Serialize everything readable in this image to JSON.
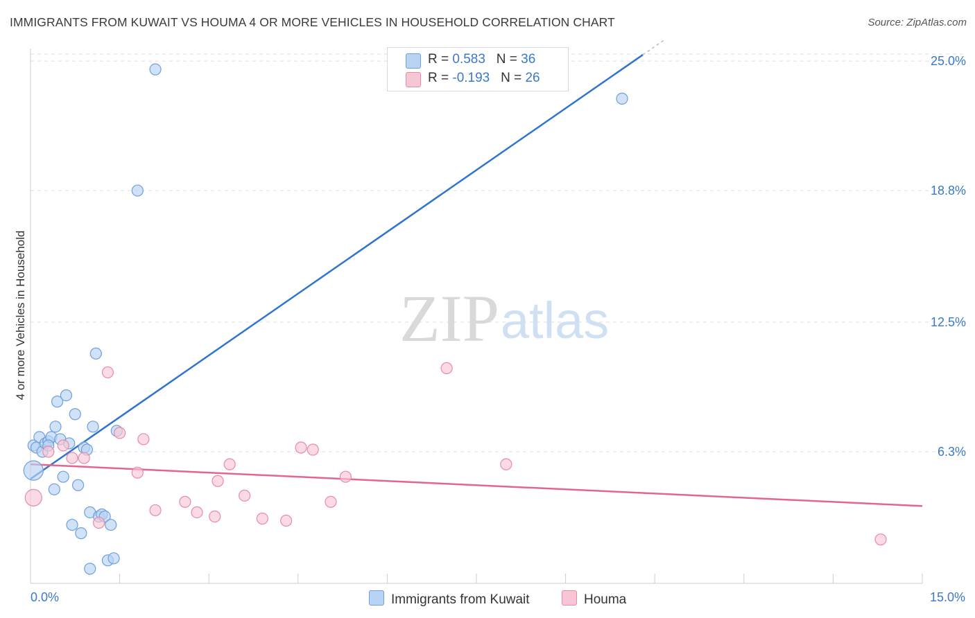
{
  "colors": {
    "blue_fill": "#b8d3f3",
    "blue_stroke": "#6d9fdc",
    "blue_line": "#2e74d0",
    "pink_fill": "#f7c6d5",
    "pink_stroke": "#e88aa8",
    "pink_line": "#e2658e",
    "axis_text": "#3a78c9",
    "grid": "#dddddd"
  },
  "header": {
    "title": "IMMIGRANTS FROM KUWAIT VS HOUMA 4 OR MORE VEHICLES IN HOUSEHOLD CORRELATION CHART",
    "source": "Source: ZipAtlas.com"
  },
  "watermark": {
    "zip": "ZIP",
    "atlas": "atlas"
  },
  "legend": {
    "rows": [
      {
        "r_label": "R = ",
        "r_value": "0.583",
        "n_label": "N = ",
        "n_value": "36"
      },
      {
        "r_label": "R = ",
        "r_value": "-0.193",
        "n_label": "N = ",
        "n_value": "26"
      }
    ]
  },
  "chart_data": {
    "type": "scatter",
    "title": "IMMIGRANTS FROM KUWAIT VS HOUMA 4 OR MORE VEHICLES IN HOUSEHOLD CORRELATION CHART",
    "xlabel": "",
    "ylabel": "4 or more Vehicles in Household",
    "xlim": [
      0,
      15
    ],
    "ylim": [
      0,
      25.6
    ],
    "x_tick_labels": [
      "0.0%",
      "15.0%"
    ],
    "y_ticks": [
      6.3,
      12.5,
      18.8,
      25.0
    ],
    "y_tick_labels": [
      "6.3%",
      "12.5%",
      "18.8%",
      "25.0%"
    ],
    "grid": true,
    "legend_position": "top-center",
    "series": [
      {
        "name": "Immigrants from Kuwait",
        "color": "#b8d3f3",
        "r": 0.583,
        "n": 36,
        "trend": {
          "x": [
            0,
            10.3
          ],
          "y": [
            5.0,
            25.3
          ]
        },
        "points": [
          [
            0.05,
            5.4
          ],
          [
            0.05,
            6.6
          ],
          [
            0.1,
            6.5
          ],
          [
            0.15,
            7.0
          ],
          [
            0.2,
            6.3
          ],
          [
            0.25,
            6.7
          ],
          [
            0.3,
            6.8
          ],
          [
            0.35,
            7.0
          ],
          [
            0.4,
            4.5
          ],
          [
            0.42,
            7.5
          ],
          [
            0.45,
            8.7
          ],
          [
            0.5,
            6.9
          ],
          [
            0.55,
            5.1
          ],
          [
            0.6,
            9.0
          ],
          [
            0.65,
            6.7
          ],
          [
            0.7,
            2.8
          ],
          [
            0.75,
            8.1
          ],
          [
            0.8,
            4.7
          ],
          [
            0.85,
            2.4
          ],
          [
            0.9,
            6.5
          ],
          [
            0.95,
            6.4
          ],
          [
            1.0,
            3.4
          ],
          [
            1.05,
            7.5
          ],
          [
            1.1,
            11.0
          ],
          [
            1.15,
            3.2
          ],
          [
            1.2,
            3.3
          ],
          [
            1.25,
            3.2
          ],
          [
            1.3,
            1.1
          ],
          [
            1.35,
            2.8
          ],
          [
            1.4,
            1.2
          ],
          [
            1.45,
            7.3
          ],
          [
            1.0,
            0.7
          ],
          [
            1.8,
            18.8
          ],
          [
            2.1,
            24.6
          ],
          [
            9.95,
            23.2
          ],
          [
            0.3,
            6.6
          ]
        ]
      },
      {
        "name": "Houma",
        "color": "#f7c6d5",
        "r": -0.193,
        "n": 26,
        "trend": {
          "x": [
            0,
            15
          ],
          "y": [
            5.7,
            3.7
          ]
        },
        "points": [
          [
            0.05,
            4.1
          ],
          [
            0.3,
            6.3
          ],
          [
            0.55,
            6.6
          ],
          [
            0.7,
            6.0
          ],
          [
            0.9,
            6.0
          ],
          [
            1.15,
            2.9
          ],
          [
            1.3,
            10.1
          ],
          [
            1.5,
            7.2
          ],
          [
            1.8,
            5.3
          ],
          [
            1.9,
            6.9
          ],
          [
            2.1,
            3.5
          ],
          [
            2.6,
            3.9
          ],
          [
            2.8,
            3.4
          ],
          [
            3.1,
            3.2
          ],
          [
            3.15,
            4.9
          ],
          [
            3.35,
            5.7
          ],
          [
            3.6,
            4.2
          ],
          [
            3.9,
            3.1
          ],
          [
            4.3,
            3.0
          ],
          [
            4.55,
            6.5
          ],
          [
            4.75,
            6.4
          ],
          [
            5.05,
            3.9
          ],
          [
            5.3,
            5.1
          ],
          [
            7.0,
            10.3
          ],
          [
            8.0,
            5.7
          ],
          [
            14.3,
            2.1
          ]
        ]
      }
    ]
  }
}
